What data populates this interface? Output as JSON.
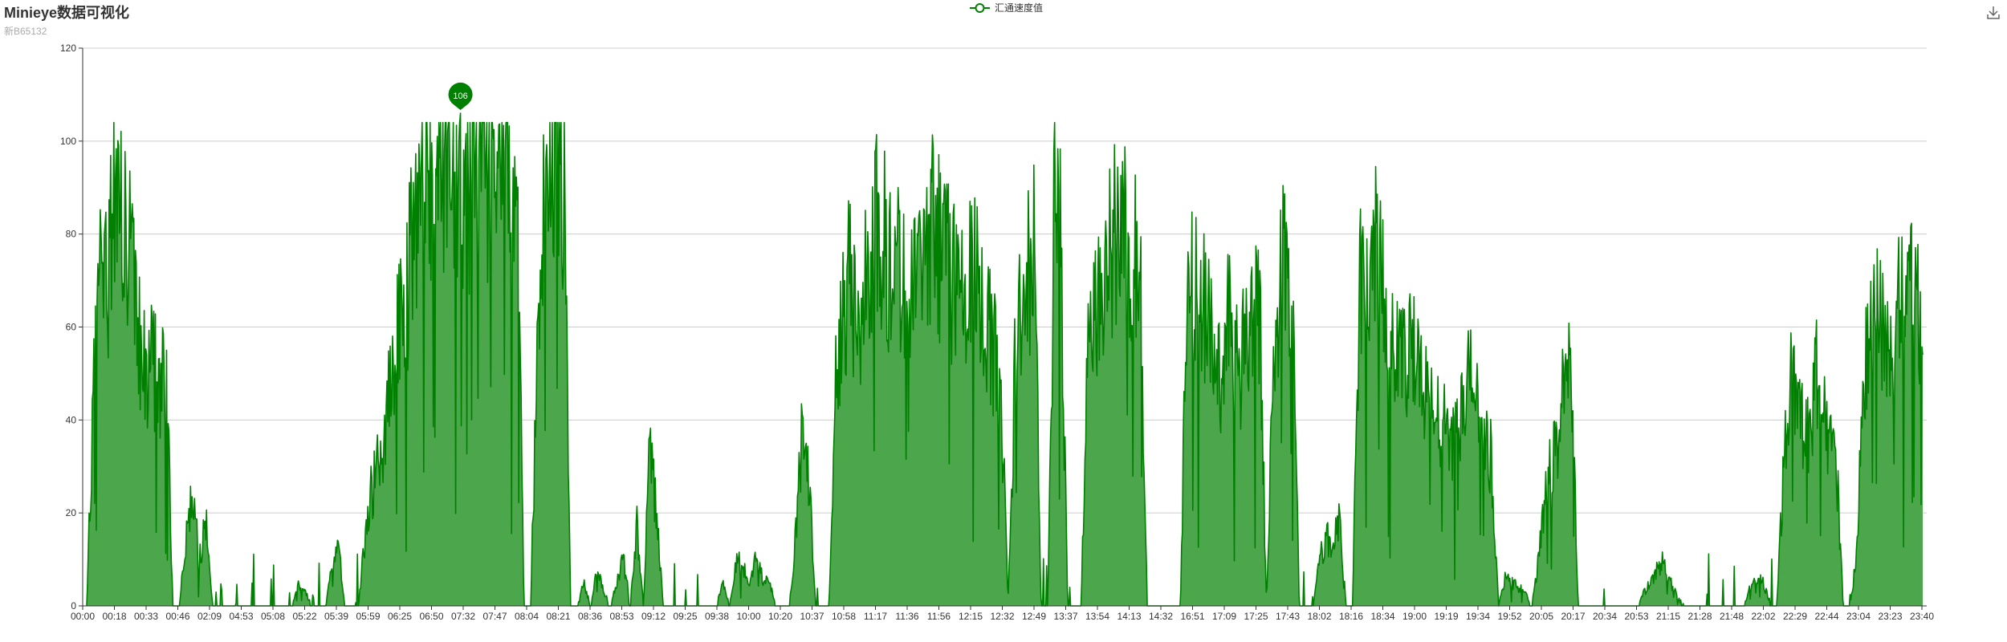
{
  "header": {
    "title": "Minieye数据可视化",
    "subtitle": "新B65132"
  },
  "toolbox": {
    "save_icon": "download-icon"
  },
  "colors": {
    "series_line": "#008000",
    "series_area": "#4ca64c",
    "grid": "#cccccc",
    "axis": "#333333"
  },
  "chart_data": {
    "type": "area",
    "legend": [
      "汇通速度值"
    ],
    "legend_position": "top-center",
    "ylim": [
      0,
      120
    ],
    "yticks": [
      0,
      20,
      40,
      60,
      80,
      100,
      120
    ],
    "grid": true,
    "xlabels": [
      "00:00",
      "00:18",
      "00:33",
      "00:46",
      "02:09",
      "04:53",
      "05:08",
      "05:22",
      "05:39",
      "05:59",
      "06:25",
      "06:50",
      "07:32",
      "07:47",
      "08:04",
      "08:21",
      "08:36",
      "08:53",
      "09:12",
      "09:25",
      "09:38",
      "10:00",
      "10:20",
      "10:37",
      "10:58",
      "11:17",
      "11:36",
      "11:56",
      "12:15",
      "12:32",
      "12:49",
      "13:37",
      "13:54",
      "14:13",
      "14:32",
      "16:51",
      "17:09",
      "17:25",
      "17:43",
      "18:02",
      "18:16",
      "18:34",
      "19:00",
      "19:19",
      "19:34",
      "19:52",
      "20:05",
      "20:17",
      "20:34",
      "20:53",
      "21:15",
      "21:28",
      "21:48",
      "22:02",
      "22:29",
      "22:44",
      "23:04",
      "23:23",
      "23:40"
    ],
    "series": [
      {
        "name": "汇通速度值",
        "profile": [
          0,
          45,
          72,
          68,
          90,
          85,
          78,
          70,
          55,
          48,
          52,
          45,
          50,
          0,
          0,
          15,
          25,
          10,
          18,
          0,
          0,
          0,
          0,
          0,
          0,
          0,
          0,
          0,
          0,
          0,
          0,
          0,
          5,
          3,
          0,
          0,
          0,
          8,
          12,
          0,
          0,
          0,
          15,
          25,
          30,
          35,
          50,
          60,
          65,
          75,
          85,
          92,
          97,
          100,
          98,
          95,
          90,
          85,
          95,
          100,
          96,
          90,
          88,
          92,
          85,
          80,
          0,
          0,
          60,
          85,
          100,
          98,
          90,
          0,
          0,
          5,
          0,
          8,
          3,
          0,
          5,
          10,
          0,
          18,
          0,
          35,
          20,
          0,
          0,
          0,
          0,
          0,
          0,
          0,
          0,
          0,
          5,
          0,
          10,
          8,
          5,
          10,
          6,
          5,
          0,
          0,
          0,
          15,
          38,
          25,
          0,
          0,
          0,
          50,
          65,
          70,
          60,
          65,
          75,
          80,
          78,
          75,
          72,
          70,
          75,
          65,
          75,
          82,
          78,
          75,
          72,
          70,
          65,
          68,
          70,
          65,
          60,
          55,
          45,
          0,
          50,
          65,
          70,
          75,
          0,
          0,
          88,
          75,
          0,
          0,
          0,
          55,
          70,
          65,
          75,
          80,
          82,
          78,
          75,
          70,
          0,
          0,
          0,
          0,
          0,
          0,
          65,
          70,
          68,
          60,
          55,
          50,
          62,
          55,
          50,
          60,
          65,
          62,
          0,
          55,
          70,
          72,
          75,
          0,
          0,
          0,
          10,
          15,
          12,
          20,
          0,
          0,
          70,
          75,
          72,
          78,
          70,
          60,
          55,
          50,
          55,
          48,
          45,
          42,
          40,
          38,
          35,
          38,
          45,
          50,
          40,
          35,
          30,
          0,
          6,
          5,
          4,
          3,
          0,
          10,
          25,
          30,
          35,
          55,
          50,
          0,
          0,
          0,
          0,
          0,
          0,
          0,
          0,
          0,
          0,
          3,
          5,
          8,
          10,
          5,
          2,
          0,
          0,
          0,
          0,
          0,
          0,
          0,
          0,
          0,
          0,
          4,
          6,
          5,
          0,
          0,
          30,
          50,
          45,
          40,
          35,
          50,
          45,
          35,
          30,
          0,
          0,
          10,
          45,
          55,
          65,
          60,
          50,
          70,
          72,
          68,
          70,
          60
        ]
      }
    ],
    "markPoint": {
      "label": "106",
      "value": 106
    }
  }
}
